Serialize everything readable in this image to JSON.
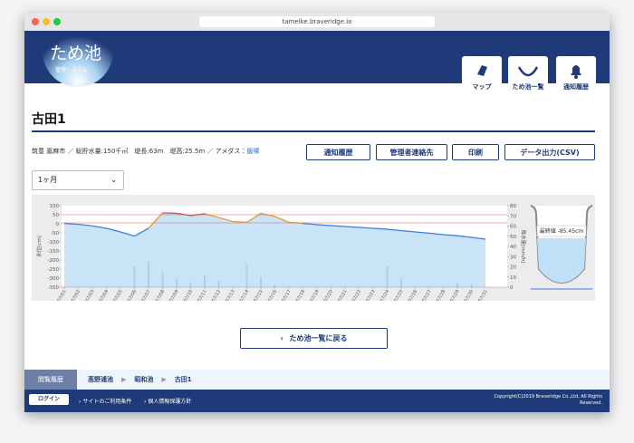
{
  "browser": {
    "url": "tameike.braveridge.io"
  },
  "header": {
    "logo": "ため池",
    "logo_sub": "管理システム",
    "nav": [
      "マップ",
      "ため池一覧",
      "通知履歴"
    ]
  },
  "pond": {
    "title": "古田1",
    "info": "筑豊 嘉麻市 ／ 総貯水量:150千㎥　堤長:63m　堤高:25.5m ／ アメダス：",
    "amedas": "飯塚",
    "actions": [
      "通知履歴",
      "管理者連絡先",
      "印刷",
      "データ出力(CSV)"
    ],
    "period": "1ヶ月"
  },
  "chart_data": {
    "type": "line",
    "ylabel": "水位[cm]",
    "y2label": "降水量[mm/h]",
    "categories": [
      "07/01",
      "07/02",
      "07/03",
      "07/04",
      "07/05",
      "07/06",
      "07/07",
      "07/08",
      "07/09",
      "07/10",
      "07/11",
      "07/12",
      "07/13",
      "07/14",
      "07/15",
      "07/16",
      "07/17",
      "07/18",
      "07/19",
      "07/20",
      "07/21",
      "07/22",
      "07/23",
      "07/24",
      "07/25",
      "07/26",
      "07/27",
      "07/28",
      "07/29",
      "07/30",
      "07/31"
    ],
    "series": [
      {
        "color": "#3b7de0",
        "values": [
          2,
          -3,
          -12,
          -25,
          -45,
          -68,
          -25,
          60,
          58,
          45,
          55,
          35,
          12,
          8,
          58,
          40,
          8,
          2,
          -5,
          -10,
          -15,
          -20,
          -25,
          -30,
          -38,
          -45,
          -52,
          -60,
          -66,
          -75,
          -85
        ]
      },
      {
        "type": "bar",
        "axis": "y2",
        "color": "#8c8c8c",
        "values": [
          0,
          0,
          0,
          0,
          0,
          20,
          25,
          15,
          8,
          5,
          12,
          6,
          0,
          22,
          10,
          3,
          0,
          0,
          0,
          0,
          0,
          0,
          0,
          20,
          8,
          0,
          0,
          0,
          4,
          3,
          0
        ]
      }
    ],
    "ylim": [
      -350,
      100
    ],
    "yticks": [
      -350,
      -300,
      -250,
      -200,
      -150,
      -100,
      -50,
      0,
      50,
      100
    ],
    "y2lim": [
      0,
      80
    ],
    "y2ticks": [
      0,
      10,
      20,
      30,
      40,
      50,
      60,
      70,
      80
    ],
    "thresholds": [
      {
        "value": 50,
        "color": "#e0584c",
        "level_color": "#d9463b"
      },
      {
        "value": 5,
        "color": "#e0584c",
        "level_color": "#e89a3a"
      }
    ]
  },
  "gauge": {
    "label": "最終値 -85.45cm"
  },
  "back": "ため池一覧に戻る",
  "history": {
    "label": "閲覧履歴",
    "items": [
      "高野浦池",
      "昭和池",
      "古田1"
    ]
  },
  "footer": {
    "login": "ログイン",
    "links": [
      "サイトのご利用条件",
      "個人情報保護方針"
    ],
    "copyright": [
      "Copyright(C)2019 Braveridge Co.,Ltd. All Rights",
      "Reserved."
    ]
  }
}
